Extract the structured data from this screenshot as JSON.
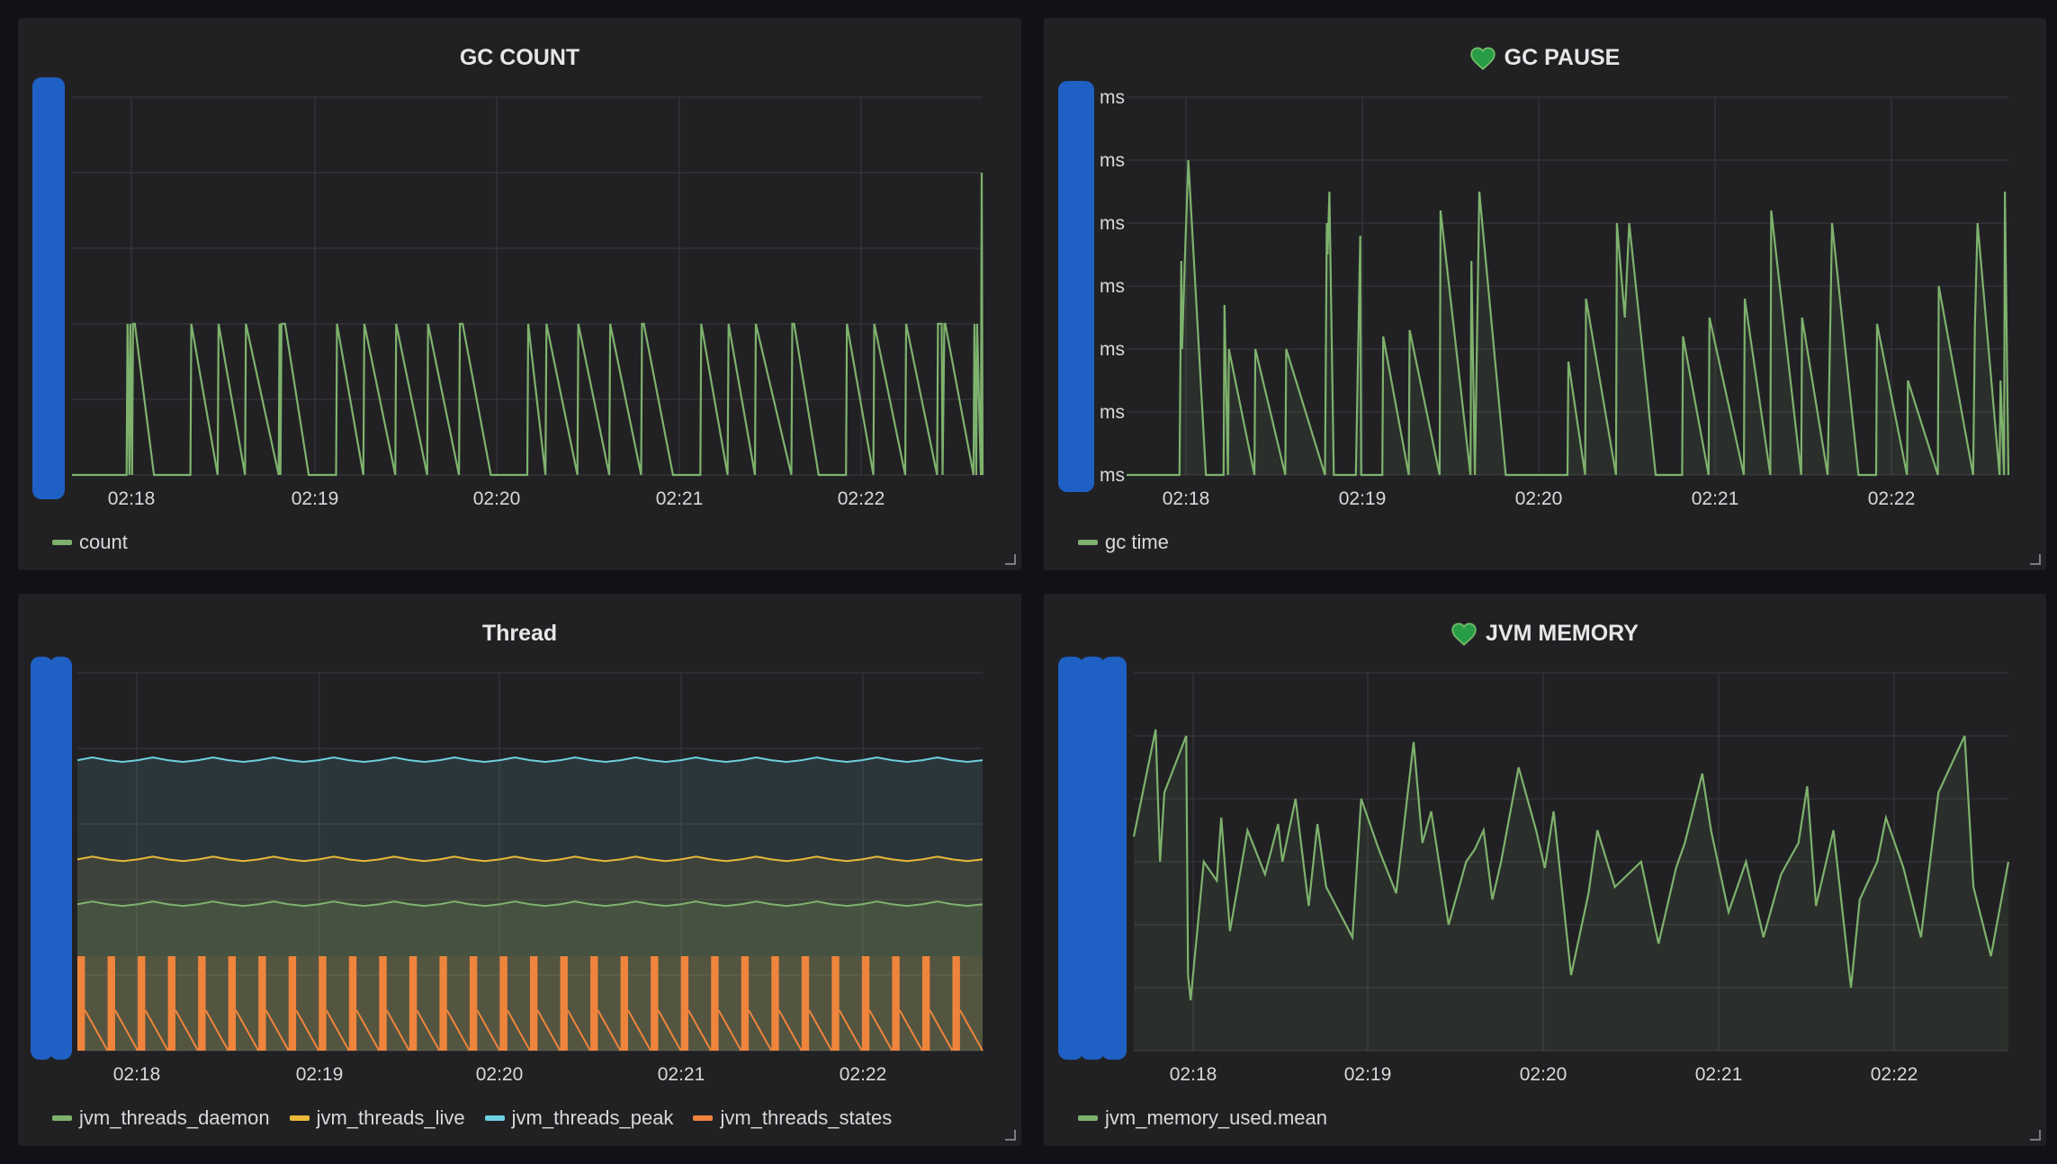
{
  "panels": [
    {
      "title": "GC COUNT",
      "has_heart": false,
      "legend": [
        {
          "label": "count",
          "color": "#7eb26d"
        }
      ]
    },
    {
      "title": "GC PAUSE",
      "has_heart": true,
      "legend": [
        {
          "label": "gc time",
          "color": "#7eb26d"
        }
      ]
    },
    {
      "title": "Thread",
      "has_heart": false,
      "legend": [
        {
          "label": "jvm_threads_daemon",
          "color": "#7eb26d"
        },
        {
          "label": "jvm_threads_live",
          "color": "#eab839"
        },
        {
          "label": "jvm_threads_peak",
          "color": "#6ed0e0"
        },
        {
          "label": "jvm_threads_states",
          "color": "#ef843c"
        }
      ]
    },
    {
      "title": "JVM MEMORY",
      "has_heart": true,
      "legend": [
        {
          "label": "jvm_memory_used.mean",
          "color": "#7eb26d"
        }
      ]
    }
  ],
  "chart_data": [
    {
      "type": "line",
      "title": "GC COUNT",
      "x_ticks": [
        "02:18",
        "02:19",
        "02:20",
        "02:21",
        "02:22"
      ],
      "ylim": [
        0,
        5
      ],
      "series": [
        {
          "name": "count",
          "color": "#7eb26d",
          "x": [
            0.0,
            0.06,
            0.061,
            0.063,
            0.064,
            0.066,
            0.067,
            0.069,
            0.09,
            0.13,
            0.131,
            0.16,
            0.161,
            0.19,
            0.191,
            0.227,
            0.228,
            0.229,
            0.23,
            0.233,
            0.234,
            0.26,
            0.29,
            0.291,
            0.32,
            0.321,
            0.355,
            0.356,
            0.39,
            0.391,
            0.425,
            0.426,
            0.428,
            0.429,
            0.46,
            0.5,
            0.501,
            0.52,
            0.521,
            0.555,
            0.556,
            0.59,
            0.591,
            0.625,
            0.626,
            0.627,
            0.628,
            0.66,
            0.69,
            0.691,
            0.72,
            0.721,
            0.75,
            0.751,
            0.79,
            0.791,
            0.792,
            0.793,
            0.82,
            0.85,
            0.851,
            0.88,
            0.881,
            0.915,
            0.916,
            0.95,
            0.951,
            0.955,
            0.956,
            0.958,
            0.959,
            0.99,
            0.991,
            0.993,
            0.994,
            0.998,
            0.999,
            1.0
          ],
          "y": [
            0,
            0,
            2,
            0,
            2,
            0,
            2,
            2,
            0,
            0,
            2,
            0,
            2,
            0,
            2,
            0,
            2,
            0,
            2,
            2,
            2,
            0,
            0,
            2,
            0,
            2,
            0,
            2,
            0,
            2,
            0,
            2,
            2,
            2,
            0,
            0,
            2,
            0,
            2,
            0,
            2,
            0,
            2,
            0,
            2,
            2,
            2,
            0,
            0,
            2,
            0,
            2,
            0,
            2,
            0,
            2,
            2,
            2,
            0,
            0,
            2,
            0,
            2,
            0,
            2,
            0,
            2,
            2,
            0,
            2,
            2,
            0,
            2,
            0,
            2,
            0,
            4,
            0
          ]
        }
      ]
    },
    {
      "type": "area",
      "title": "GC PAUSE",
      "x_ticks": [
        "02:18",
        "02:19",
        "02:20",
        "02:21",
        "02:22"
      ],
      "y_ticks": [
        "ms",
        "ms",
        "ms",
        "ms",
        "ms",
        "ms",
        "ms"
      ],
      "ylim": [
        0,
        6
      ],
      "series": [
        {
          "name": "gc time",
          "color": "#7eb26d",
          "x": [
            0.0,
            0.06,
            0.062,
            0.063,
            0.066,
            0.07,
            0.09,
            0.11,
            0.111,
            0.115,
            0.116,
            0.145,
            0.146,
            0.18,
            0.181,
            0.225,
            0.227,
            0.228,
            0.23,
            0.235,
            0.26,
            0.265,
            0.266,
            0.29,
            0.291,
            0.32,
            0.321,
            0.355,
            0.356,
            0.39,
            0.391,
            0.395,
            0.4,
            0.43,
            0.46,
            0.5,
            0.501,
            0.52,
            0.521,
            0.555,
            0.556,
            0.565,
            0.57,
            0.6,
            0.63,
            0.631,
            0.66,
            0.661,
            0.7,
            0.701,
            0.73,
            0.731,
            0.765,
            0.766,
            0.795,
            0.8,
            0.83,
            0.85,
            0.851,
            0.885,
            0.886,
            0.92,
            0.921,
            0.96,
            0.962,
            0.965,
            0.99,
            0.991,
            0.995,
            0.996,
            1.0
          ],
          "y": [
            0,
            0,
            3.4,
            2,
            3.4,
            5,
            0,
            0,
            2.7,
            0,
            2,
            0,
            2,
            0,
            2,
            0,
            4,
            3.5,
            4.5,
            0,
            0,
            3.8,
            0,
            0,
            2.2,
            0,
            2.3,
            0,
            4.2,
            0,
            3.4,
            0,
            4.5,
            0,
            0,
            0,
            1.8,
            0,
            2.8,
            0,
            4,
            2.5,
            4,
            0,
            0,
            2.2,
            0,
            2.5,
            0,
            2.8,
            0,
            4.2,
            0,
            2.5,
            0,
            4,
            0,
            0,
            2.4,
            0,
            1.5,
            0,
            3,
            0,
            2.4,
            4,
            0,
            1.5,
            0,
            4.5,
            0
          ]
        }
      ]
    },
    {
      "type": "area",
      "title": "Thread",
      "x_ticks": [
        "02:18",
        "02:19",
        "02:20",
        "02:21",
        "02:22"
      ],
      "ylim": [
        0,
        80
      ],
      "series": [
        {
          "name": "jvm_threads_daemon",
          "color": "#7eb26d",
          "values_mean": 31
        },
        {
          "name": "jvm_threads_live",
          "color": "#eab839",
          "values_mean": 40.5
        },
        {
          "name": "jvm_threads_peak",
          "color": "#6ed0e0",
          "values_mean": 61.5
        },
        {
          "name": "jvm_threads_states",
          "color": "#ef843c",
          "values_min": 0,
          "values_max": 20,
          "pulses": 30
        }
      ]
    },
    {
      "type": "area",
      "title": "JVM MEMORY",
      "x_ticks": [
        "02:18",
        "02:19",
        "02:20",
        "02:21",
        "02:22"
      ],
      "ylim": [
        0,
        6
      ],
      "series": [
        {
          "name": "jvm_memory_used.mean",
          "color": "#7eb26d",
          "x": [
            0.0,
            0.025,
            0.03,
            0.035,
            0.06,
            0.062,
            0.065,
            0.08,
            0.095,
            0.1,
            0.11,
            0.13,
            0.15,
            0.165,
            0.17,
            0.185,
            0.2,
            0.21,
            0.22,
            0.25,
            0.26,
            0.28,
            0.3,
            0.32,
            0.33,
            0.34,
            0.36,
            0.38,
            0.39,
            0.4,
            0.41,
            0.42,
            0.44,
            0.46,
            0.47,
            0.48,
            0.5,
            0.52,
            0.53,
            0.55,
            0.58,
            0.6,
            0.62,
            0.63,
            0.65,
            0.66,
            0.68,
            0.7,
            0.72,
            0.74,
            0.76,
            0.77,
            0.78,
            0.8,
            0.82,
            0.83,
            0.85,
            0.86,
            0.88,
            0.9,
            0.92,
            0.95,
            0.96,
            0.98,
            1.0
          ],
          "y": [
            3.4,
            5.1,
            3.0,
            4.1,
            5.0,
            1.2,
            0.8,
            3.0,
            2.7,
            3.7,
            1.9,
            3.5,
            2.8,
            3.6,
            3.0,
            4.0,
            2.3,
            3.6,
            2.6,
            1.8,
            4.0,
            3.2,
            2.5,
            4.9,
            3.3,
            3.8,
            2.0,
            3.0,
            3.2,
            3.5,
            2.4,
            3.0,
            4.5,
            3.5,
            2.9,
            3.8,
            1.2,
            2.5,
            3.5,
            2.6,
            3.0,
            1.7,
            2.9,
            3.3,
            4.4,
            3.5,
            2.2,
            3.0,
            1.8,
            2.8,
            3.3,
            4.2,
            2.3,
            3.5,
            1.0,
            2.4,
            3.0,
            3.7,
            2.9,
            1.8,
            4.1,
            5.0,
            2.6,
            1.5,
            3.0
          ]
        }
      ]
    }
  ]
}
